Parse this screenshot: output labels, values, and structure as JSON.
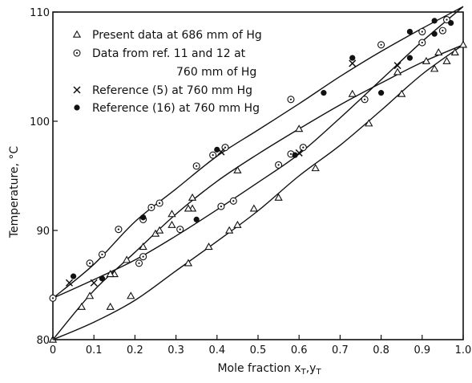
{
  "chart_data": {
    "type": "scatter",
    "title": "",
    "xlabel": "Mole fraction x₁,y₁",
    "xlabel_parts": {
      "text": "Mole fraction x",
      "sub1": "T",
      "sep": ",y",
      "sub2": "T"
    },
    "ylabel": "Temperature, °C",
    "xlim": [
      0,
      1.0
    ],
    "ylim": [
      80,
      110
    ],
    "grid": false,
    "legend_position": "top-left",
    "x_ticks": [
      0,
      0.1,
      0.2,
      0.3,
      0.4,
      0.5,
      0.6,
      0.7,
      0.8,
      0.9,
      1.0
    ],
    "x_tick_labels": [
      "0",
      "0.1",
      "0.2",
      "0.3",
      "0.4",
      "0.5",
      "0.6",
      "0.7",
      "0.8",
      "0.9",
      "1.0"
    ],
    "y_ticks": [
      80,
      90,
      100,
      110
    ],
    "y_tick_labels": [
      "80",
      "90",
      "100",
      "110"
    ],
    "legend": [
      {
        "marker": "triangle",
        "lines": [
          "Present data at 686 mm of Hg"
        ]
      },
      {
        "marker": "circle-dot",
        "lines": [
          "Data from ref. 11 and 12 at",
          "760 mm of Hg"
        ]
      },
      {
        "marker": "cross",
        "lines": [
          "Reference (5) at 760 mm Hg"
        ]
      },
      {
        "marker": "filled-circle",
        "lines": [
          "Reference (16) at 760 mm Hg"
        ]
      }
    ],
    "series": [
      {
        "name": "Present data at 686 mm of Hg",
        "marker": "triangle",
        "points": [
          [
            0.0,
            80.0
          ],
          [
            0.07,
            83.0
          ],
          [
            0.14,
            83.0
          ],
          [
            0.19,
            84.0
          ],
          [
            0.33,
            87.0
          ],
          [
            0.38,
            88.5
          ],
          [
            0.43,
            90.0
          ],
          [
            0.45,
            90.5
          ],
          [
            0.55,
            93.0
          ],
          [
            0.64,
            95.7
          ],
          [
            0.77,
            99.8
          ],
          [
            0.85,
            102.5
          ],
          [
            0.93,
            104.8
          ],
          [
            0.96,
            105.5
          ],
          [
            0.98,
            106.3
          ],
          [
            1.0,
            107.0
          ],
          [
            0.09,
            84.0
          ],
          [
            0.15,
            86.0
          ],
          [
            0.18,
            87.3
          ],
          [
            0.25,
            89.7
          ],
          [
            0.29,
            90.5
          ],
          [
            0.34,
            92.0
          ],
          [
            0.49,
            92.0
          ],
          [
            0.14,
            86.0
          ],
          [
            0.22,
            88.5
          ],
          [
            0.26,
            90.0
          ],
          [
            0.29,
            91.5
          ],
          [
            0.33,
            92.0
          ],
          [
            0.34,
            93.0
          ],
          [
            0.45,
            95.5
          ],
          [
            0.6,
            99.3
          ],
          [
            0.73,
            102.5
          ],
          [
            0.84,
            104.5
          ],
          [
            0.91,
            105.5
          ],
          [
            0.94,
            106.3
          ]
        ]
      },
      {
        "name": "Data from ref. 11 and 12 at 760 mm of Hg",
        "marker": "circle-dot",
        "points": [
          [
            0.0,
            83.8
          ],
          [
            0.09,
            87.0
          ],
          [
            0.12,
            87.8
          ],
          [
            0.16,
            90.1
          ],
          [
            0.22,
            91.0
          ],
          [
            0.24,
            92.1
          ],
          [
            0.26,
            92.5
          ],
          [
            0.35,
            95.9
          ],
          [
            0.39,
            96.9
          ],
          [
            0.42,
            97.6
          ],
          [
            0.58,
            102.0
          ],
          [
            0.8,
            107.0
          ],
          [
            0.9,
            108.2
          ],
          [
            0.95,
            108.3
          ],
          [
            0.21,
            87.0
          ],
          [
            0.22,
            87.6
          ],
          [
            0.31,
            90.1
          ],
          [
            0.41,
            92.2
          ],
          [
            0.44,
            92.7
          ],
          [
            0.55,
            96.0
          ],
          [
            0.58,
            97.0
          ],
          [
            0.61,
            97.6
          ],
          [
            0.76,
            102.0
          ],
          [
            0.9,
            107.2
          ],
          [
            0.96,
            109.3
          ]
        ]
      },
      {
        "name": "Reference (5) at 760 mm Hg",
        "marker": "cross",
        "points": [
          [
            0.04,
            85.2
          ],
          [
            0.1,
            85.2
          ],
          [
            0.41,
            97.2
          ],
          [
            0.6,
            97.1
          ],
          [
            0.73,
            105.3
          ],
          [
            0.84,
            105.1
          ]
        ]
      },
      {
        "name": "Reference (16) at 760 mm Hg",
        "marker": "filled-circle",
        "points": [
          [
            0.05,
            85.8
          ],
          [
            0.12,
            85.6
          ],
          [
            0.22,
            91.2
          ],
          [
            0.35,
            91.0
          ],
          [
            0.4,
            97.4
          ],
          [
            0.59,
            96.9
          ],
          [
            0.66,
            102.6
          ],
          [
            0.73,
            105.8
          ],
          [
            0.8,
            102.6
          ],
          [
            0.87,
            105.8
          ],
          [
            0.87,
            108.2
          ],
          [
            0.93,
            108.0
          ],
          [
            0.93,
            109.2
          ],
          [
            0.97,
            109.0
          ]
        ]
      }
    ],
    "curves": [
      {
        "name": "curve-760-vapor",
        "points": [
          [
            0.0,
            83.8
          ],
          [
            0.1,
            86.9
          ],
          [
            0.2,
            90.8
          ],
          [
            0.3,
            93.8
          ],
          [
            0.4,
            96.8
          ],
          [
            0.5,
            99.2
          ],
          [
            0.6,
            101.6
          ],
          [
            0.7,
            104.1
          ],
          [
            0.8,
            106.4
          ],
          [
            0.9,
            108.5
          ],
          [
            1.0,
            110.5
          ]
        ]
      },
      {
        "name": "curve-760-liquid",
        "points": [
          [
            0.0,
            83.8
          ],
          [
            0.1,
            85.5
          ],
          [
            0.2,
            87.3
          ],
          [
            0.3,
            89.5
          ],
          [
            0.4,
            91.9
          ],
          [
            0.5,
            94.4
          ],
          [
            0.6,
            97.0
          ],
          [
            0.7,
            100.3
          ],
          [
            0.8,
            103.8
          ],
          [
            0.9,
            107.3
          ],
          [
            1.0,
            110.5
          ]
        ]
      },
      {
        "name": "curve-686-vapor",
        "points": [
          [
            0.0,
            80.0
          ],
          [
            0.1,
            84.5
          ],
          [
            0.2,
            88.0
          ],
          [
            0.3,
            91.5
          ],
          [
            0.4,
            94.5
          ],
          [
            0.5,
            97.0
          ],
          [
            0.6,
            99.3
          ],
          [
            0.7,
            101.5
          ],
          [
            0.8,
            103.5
          ],
          [
            0.9,
            105.4
          ],
          [
            1.0,
            107.0
          ]
        ]
      },
      {
        "name": "curve-686-liquid",
        "points": [
          [
            0.0,
            80.0
          ],
          [
            0.1,
            81.6
          ],
          [
            0.2,
            83.6
          ],
          [
            0.3,
            86.3
          ],
          [
            0.4,
            89.0
          ],
          [
            0.5,
            91.8
          ],
          [
            0.6,
            95.0
          ],
          [
            0.7,
            97.8
          ],
          [
            0.8,
            101.0
          ],
          [
            0.9,
            104.3
          ],
          [
            1.0,
            107.0
          ]
        ]
      }
    ]
  }
}
